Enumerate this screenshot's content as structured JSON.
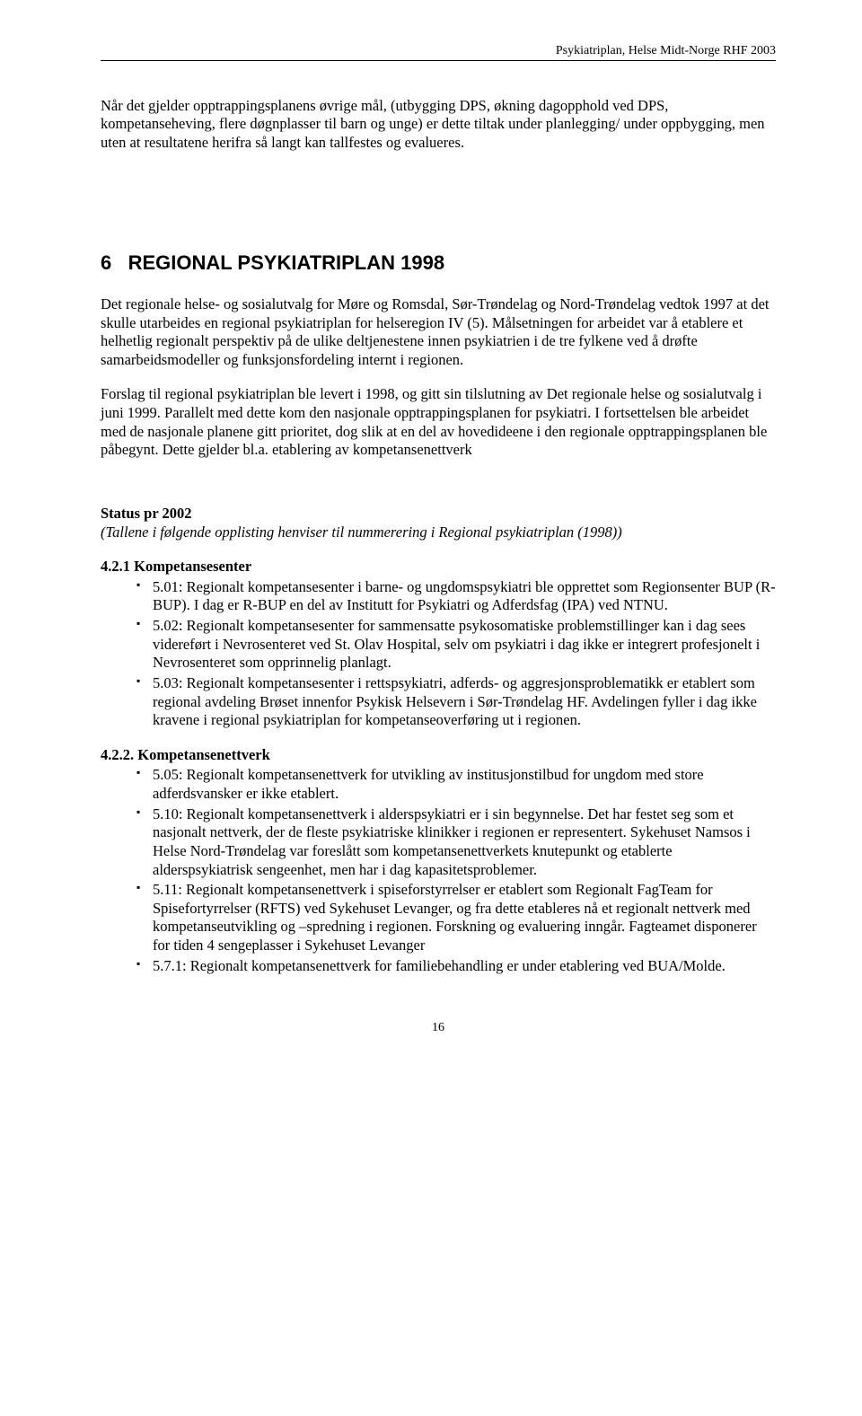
{
  "header": {
    "running_title": "Psykiatriplan, Helse Midt-Norge RHF 2003"
  },
  "intro": {
    "text": "Når det gjelder opptrappingsplanens øvrige mål, (utbygging DPS, økning dagopphold ved DPS, kompetanseheving, flere døgnplasser til barn og unge) er dette tiltak under planlegging/ under oppbygging, men uten at resultatene herifra så langt kan tallfestes og evalueres."
  },
  "chapter": {
    "number": "6",
    "title": "REGIONAL PSYKIATRIPLAN 1998"
  },
  "paragraphs": {
    "p1": "Det regionale helse- og sosialutvalg for Møre og Romsdal, Sør-Trøndelag og Nord-Trøndelag vedtok 1997 at det skulle utarbeides en regional psykiatriplan for helseregion IV (5). Målsetningen for arbeidet var å etablere et helhetlig regionalt perspektiv på de ulike deltjenestene innen psykiatrien i de tre fylkene ved å drøfte samarbeidsmodeller og funksjonsfordeling internt i regionen.",
    "p2": "Forslag til regional psykiatriplan ble levert  i 1998, og gitt sin tilslutning av Det regionale helse og sosialutvalg i juni 1999. Parallelt med dette kom den nasjonale opptrappingsplanen for psykiatri. I fortsettelsen ble arbeidet med de nasjonale planene gitt prioritet, dog slik at en del av hovedideene i den regionale opptrappingsplanen ble påbegynt. Dette gjelder bl.a. etablering av kompetansenettverk"
  },
  "status": {
    "heading": "Status pr 2002",
    "subheading": "(Tallene i følgende opplisting henviser til nummerering i Regional psykiatriplan (1998))"
  },
  "section421": {
    "heading": "4.2.1 Kompetansesenter",
    "items": [
      "5.01: Regionalt kompetansesenter i barne- og ungdomspsykiatri ble opprettet som Regionsenter BUP (R-BUP). I dag er R-BUP en del av Institutt for Psykiatri og Adferdsfag  (IPA) ved NTNU.",
      "5.02: Regionalt kompetansesenter for sammensatte psykosomatiske problemstillinger kan i dag sees videreført i Nevrosenteret ved St. Olav Hospital, selv om psykiatri i dag ikke er integrert profesjonelt i Nevrosenteret som opprinnelig planlagt.",
      "5.03: Regionalt kompetansesenter i rettspsykiatri, adferds- og aggresjonsproblematikk er etablert som regional avdeling Brøset innenfor Psykisk Helsevern i Sør-Trøndelag  HF. Avdelingen fyller i dag ikke kravene i regional psykiatriplan for kompetanseoverføring ut i regionen."
    ]
  },
  "section422": {
    "heading": "4.2.2. Kompetansenettverk",
    "items": [
      "5.05: Regionalt kompetansenettverk for utvikling av institusjonstilbud for ungdom med store adferdsvansker er ikke etablert.",
      "5.10: Regionalt kompetansenettverk i alderspsykiatri er i sin begynnelse. Det har festet seg som et nasjonalt nettverk, der de fleste psykiatriske klinikker i regionen er representert. Sykehuset Namsos i Helse Nord-Trøndelag var foreslått som kompetansenettverkets knutepunkt og etablerte alderspsykiatrisk sengeenhet, men har i dag kapasitetsproblemer.",
      "5.11: Regionalt kompetansenettverk i spiseforstyrrelser er etablert som Regionalt FagTeam for Spisefortyrrelser (RFTS)  ved Sykehuset Levanger, og fra dette etableres nå et regionalt nettverk med kompetanseutvikling og –spredning i regionen. Forskning og evaluering inngår. Fagteamet disponerer for tiden 4 sengeplasser i Sykehuset Levanger",
      "5.7.1: Regionalt kompetansenettverk for familiebehandling er under etablering ved BUA/Molde."
    ]
  },
  "footer": {
    "page_number": "16"
  }
}
